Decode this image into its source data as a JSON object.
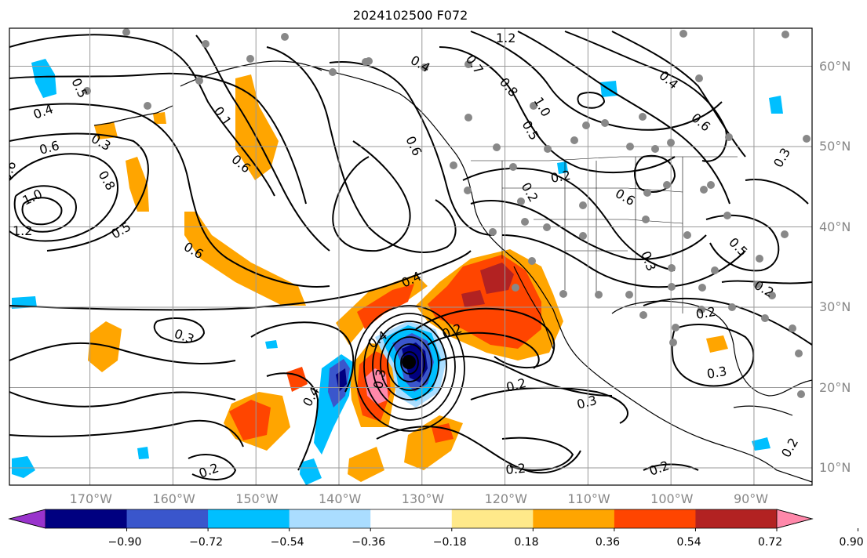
{
  "title": "2024102500 F072",
  "lat_labels": [
    {
      "text": "60°N",
      "deg": 60
    },
    {
      "text": "50°N",
      "deg": 50
    },
    {
      "text": "40°N",
      "deg": 40
    },
    {
      "text": "30°N",
      "deg": 30
    },
    {
      "text": "20°N",
      "deg": 20
    },
    {
      "text": "10°N",
      "deg": 10
    }
  ],
  "lon_labels": [
    {
      "text": "170°W",
      "deg": -170
    },
    {
      "text": "160°W",
      "deg": -160
    },
    {
      "text": "150°W",
      "deg": -150
    },
    {
      "text": "140°W",
      "deg": -140
    },
    {
      "text": "130°W",
      "deg": -130
    },
    {
      "text": "120°W",
      "deg": -120
    },
    {
      "text": "110°W",
      "deg": -110
    },
    {
      "text": "100°W",
      "deg": -100
    },
    {
      "text": "90°W",
      "deg": -90
    }
  ],
  "colorbar": {
    "colors": [
      "#9933cc",
      "#000080",
      "#3a56cc",
      "#00bfff",
      "#aaddff",
      "#ffffff",
      "#ffe98a",
      "#ffa500",
      "#ff4500",
      "#b22222",
      "#ff88aa"
    ],
    "tick_labels": [
      "−0.90",
      "−0.72",
      "−0.54",
      "−0.36",
      "−0.18",
      "0.18",
      "0.36",
      "0.54",
      "0.72",
      "0.90"
    ]
  },
  "contour_labels": [
    "1.2",
    "0.4",
    "0.7",
    "0.8",
    "1.0",
    "0.5",
    "0.4",
    "0.6",
    "0.5",
    "0.4",
    "0.6",
    "0.6",
    "0.8",
    "0.3",
    "0.1",
    "0.2",
    "0.6",
    "1.0",
    "1.2",
    "0.5",
    "0.6",
    "0.6",
    "0.2",
    "0.3",
    "0.4",
    "0.3",
    "0.4",
    "0.3",
    "0.2",
    "0.2",
    "0.6",
    "0.5",
    "0.3",
    "0.2",
    "0.2",
    "0.3",
    "0.3",
    "0.2",
    "0.2",
    "0.4",
    "0.2",
    "0.2"
  ],
  "storm_marker": {
    "lon": -130.8,
    "lat": 23.2
  }
}
